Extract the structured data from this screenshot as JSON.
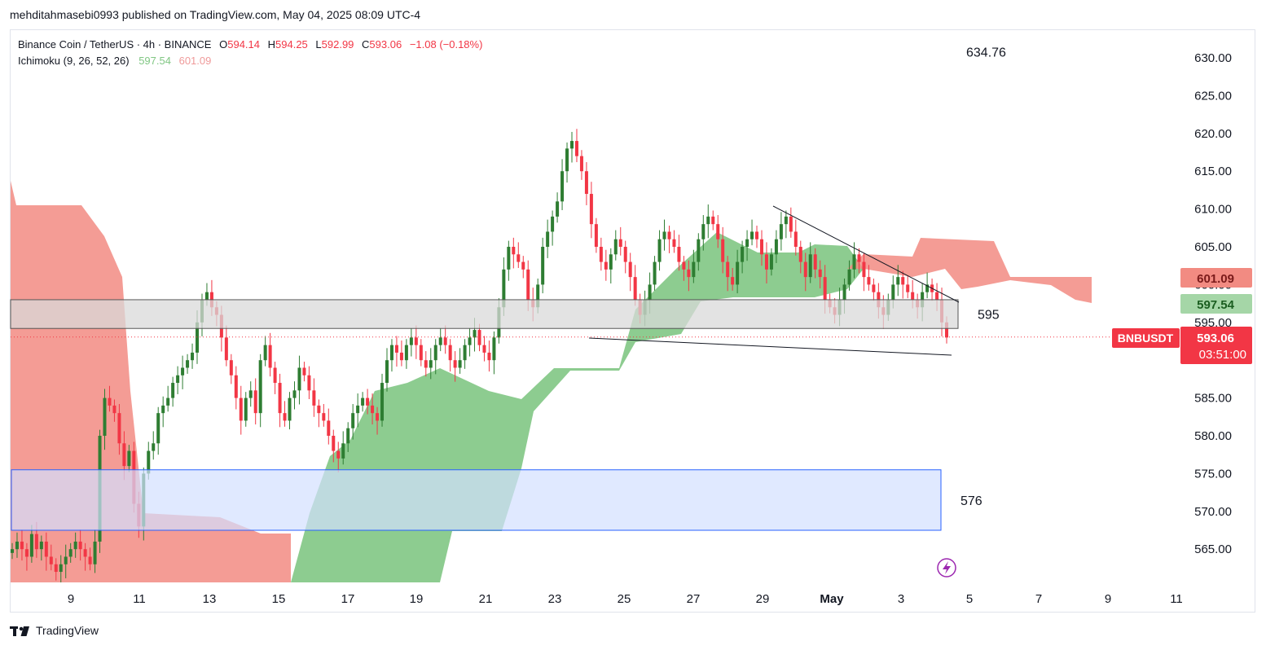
{
  "header": {
    "published": "mehditahmasebi0993 published on TradingView.com, May 04, 2025 08:09 UTC-4"
  },
  "legend": {
    "symbol": "Binance Coin / TetherUS · 4h · BINANCE",
    "o_label": "O",
    "o_value": "594.14",
    "h_label": "H",
    "h_value": "594.25",
    "l_label": "L",
    "l_value": "592.99",
    "c_label": "C",
    "c_value": "593.06",
    "change": "−1.08 (−0.18%)",
    "indicator": "Ichimoku (9, 26, 52, 26)",
    "ichimoku_a": "597.54",
    "ichimoku_b": "601.09"
  },
  "footer": {
    "brand": "TradingView"
  },
  "colors": {
    "up": "#26a69a",
    "up_candle": "#2e7d32",
    "down": "#f23645",
    "cloud_bull": "#81c784",
    "cloud_bear": "#f28b82",
    "zone": "#d3e0ff",
    "zone_border": "#2962ff",
    "band": "#d9d9d9",
    "price_label": "#f23645",
    "grid": "#f0f3fa"
  },
  "chart_data": {
    "type": "candlestick",
    "symbol": "BNBUSDT",
    "timeframe": "4h",
    "y_range": [
      561,
      633
    ],
    "y_ticks": [
      "630.00",
      "625.00",
      "620.00",
      "615.00",
      "610.00",
      "605.00",
      "600.00",
      "595.00",
      "590.00",
      "585.00",
      "580.00",
      "575.00",
      "570.00",
      "565.00"
    ],
    "x_ticks": [
      "9",
      "11",
      "13",
      "15",
      "17",
      "19",
      "21",
      "23",
      "25",
      "27",
      "29",
      "May",
      "3",
      "5",
      "7",
      "9",
      "11"
    ],
    "zones": [
      {
        "label": "634.76",
        "top": 639,
        "bottom": 633
      },
      {
        "label": "576",
        "top": 575.5,
        "bottom": 567.5
      }
    ],
    "band": {
      "label": "595",
      "top": 598,
      "bottom": 594.2
    },
    "trendlines": [
      {
        "from": [
          "Apr 29",
          610.5
        ],
        "to": [
          "May 4",
          597.8
        ]
      },
      {
        "from": [
          "Apr 24",
          593
        ],
        "to": [
          "May 4",
          590.2
        ]
      }
    ],
    "price_labels": [
      {
        "value": "601.09",
        "kind": "ichimoku-b"
      },
      {
        "value": "597.54",
        "kind": "ichimoku-a"
      },
      {
        "value": "593.06",
        "kind": "last",
        "countdown": "03:51:00",
        "symbol": "BNBUSDT"
      }
    ],
    "closes": [
      565,
      566,
      565,
      564,
      567,
      565,
      566,
      564,
      563,
      562,
      563,
      564,
      565,
      566,
      565,
      564,
      563,
      566,
      580,
      585,
      584,
      583,
      579,
      576,
      578,
      571,
      568,
      575,
      578,
      579,
      583,
      584,
      585,
      587,
      588,
      589,
      590,
      591,
      595,
      598,
      599,
      597,
      596,
      593,
      590,
      588,
      585,
      582,
      585,
      586,
      583,
      590,
      592,
      589,
      587,
      583,
      582,
      585,
      586,
      589,
      588,
      586,
      584,
      583,
      582,
      580,
      578,
      577,
      579,
      581,
      583,
      584,
      585,
      584,
      583,
      582,
      587,
      590,
      592,
      591,
      590,
      592,
      593,
      592,
      590,
      589,
      590,
      592,
      593,
      592,
      590,
      589,
      590,
      592,
      593,
      594,
      592,
      591,
      590,
      593,
      597,
      602,
      605,
      604,
      603,
      602,
      598,
      597,
      600,
      605,
      607,
      609,
      611,
      615,
      618,
      619,
      617,
      615,
      612,
      608,
      605,
      603,
      602,
      604,
      606,
      605,
      603,
      601,
      598,
      596,
      598,
      600,
      603,
      606,
      607,
      606,
      605,
      603,
      602,
      601,
      603,
      606,
      608,
      609,
      608,
      606,
      603,
      601,
      600,
      603,
      605,
      606,
      607,
      606,
      604,
      602,
      604,
      606,
      608,
      609,
      607,
      605,
      603,
      601,
      604,
      602,
      601,
      598,
      597,
      596,
      598,
      600,
      602,
      604,
      603,
      601,
      600,
      599,
      597,
      596,
      598,
      600,
      601,
      600,
      599,
      598,
      597,
      599,
      600,
      599,
      598,
      595,
      593
    ]
  }
}
